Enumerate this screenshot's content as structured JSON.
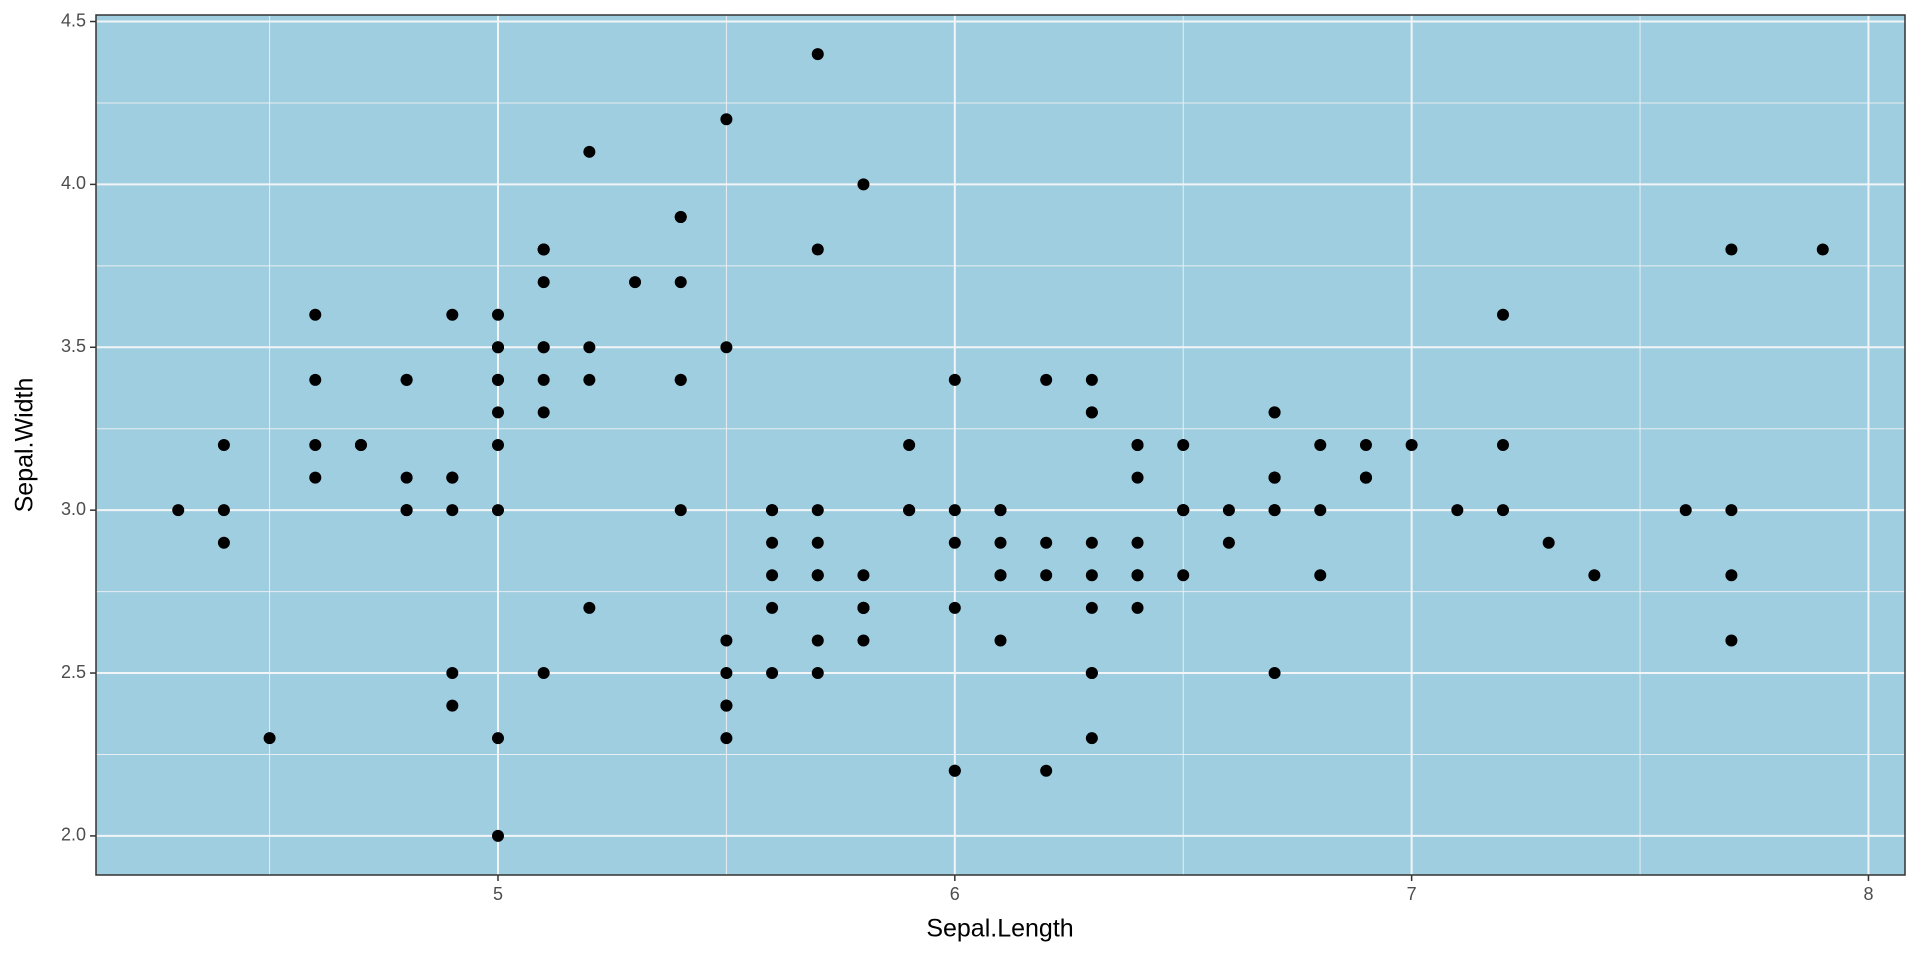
{
  "chart_data": {
    "type": "scatter",
    "x_label": "Sepal.Length",
    "y_label": "Sepal.Width",
    "x": [
      5.1,
      4.9,
      4.7,
      4.6,
      5.0,
      5.4,
      4.6,
      5.0,
      4.4,
      4.9,
      5.4,
      4.8,
      4.8,
      4.3,
      5.8,
      5.7,
      5.4,
      5.1,
      5.7,
      5.1,
      5.4,
      5.1,
      4.6,
      5.1,
      4.8,
      5.0,
      5.0,
      5.2,
      5.2,
      4.7,
      4.8,
      5.4,
      5.2,
      5.5,
      4.9,
      5.0,
      5.5,
      4.9,
      4.4,
      5.1,
      5.0,
      4.5,
      4.4,
      5.0,
      5.1,
      4.8,
      5.1,
      4.6,
      5.3,
      5.0,
      7.0,
      6.4,
      6.9,
      5.5,
      6.5,
      5.7,
      6.3,
      4.9,
      6.6,
      5.2,
      5.0,
      5.9,
      6.0,
      6.1,
      5.6,
      6.7,
      5.6,
      5.8,
      6.2,
      5.6,
      5.9,
      6.1,
      6.3,
      6.1,
      6.4,
      6.6,
      6.8,
      6.7,
      6.0,
      5.7,
      5.5,
      5.5,
      5.8,
      6.0,
      5.4,
      6.0,
      6.7,
      6.3,
      5.6,
      5.5,
      5.5,
      6.1,
      5.8,
      5.0,
      5.6,
      5.7,
      5.7,
      6.2,
      5.1,
      5.7,
      6.3,
      5.8,
      7.1,
      6.3,
      6.5,
      7.6,
      4.9,
      7.3,
      6.7,
      7.2,
      6.5,
      6.4,
      6.8,
      5.7,
      5.8,
      6.4,
      6.5,
      7.7,
      7.7,
      6.0,
      6.9,
      5.6,
      7.7,
      6.3,
      6.7,
      7.2,
      6.2,
      6.1,
      6.4,
      7.2,
      7.4,
      7.9,
      6.4,
      6.3,
      6.1,
      7.7,
      6.3,
      6.4,
      6.0,
      6.9,
      6.7,
      6.9,
      5.8,
      6.8,
      6.7,
      6.7,
      6.3,
      6.5,
      6.2,
      5.9
    ],
    "values": [
      3.5,
      3.0,
      3.2,
      3.1,
      3.6,
      3.9,
      3.4,
      3.4,
      2.9,
      3.1,
      3.7,
      3.4,
      3.0,
      3.0,
      4.0,
      4.4,
      3.9,
      3.5,
      3.8,
      3.8,
      3.4,
      3.7,
      3.6,
      3.3,
      3.4,
      3.0,
      3.4,
      3.5,
      3.4,
      3.2,
      3.1,
      3.4,
      4.1,
      4.2,
      3.1,
      3.2,
      3.5,
      3.6,
      3.0,
      3.4,
      3.5,
      2.3,
      3.2,
      3.5,
      3.8,
      3.0,
      3.8,
      3.2,
      3.7,
      3.3,
      3.2,
      3.2,
      3.1,
      2.3,
      2.8,
      2.8,
      3.3,
      2.4,
      2.9,
      2.7,
      2.0,
      3.0,
      2.2,
      2.9,
      2.9,
      3.1,
      3.0,
      2.7,
      2.2,
      2.5,
      3.2,
      2.8,
      2.5,
      2.8,
      2.9,
      3.0,
      2.8,
      3.0,
      2.9,
      2.6,
      2.4,
      2.4,
      2.7,
      2.7,
      3.0,
      3.4,
      3.1,
      2.3,
      3.0,
      2.5,
      2.6,
      3.0,
      2.6,
      2.3,
      2.7,
      3.0,
      2.9,
      2.9,
      2.5,
      2.8,
      3.3,
      2.7,
      3.0,
      2.9,
      3.0,
      3.0,
      2.5,
      2.9,
      2.5,
      3.6,
      3.2,
      2.7,
      3.0,
      2.5,
      2.8,
      3.2,
      3.0,
      3.8,
      2.6,
      2.2,
      3.2,
      2.8,
      2.8,
      2.7,
      3.3,
      3.2,
      2.8,
      3.0,
      2.8,
      3.0,
      2.8,
      3.8,
      2.8,
      2.8,
      2.6,
      3.0,
      3.4,
      3.1,
      3.0,
      3.1,
      3.1,
      3.1,
      2.7,
      3.2,
      3.3,
      3.0,
      2.5,
      3.0,
      3.4,
      3.0
    ],
    "color": "#000000",
    "background": "#9fcee0",
    "grid": true,
    "xlim": [
      4.12,
      8.08
    ],
    "xticks": [
      5,
      6,
      7,
      8
    ],
    "ylim": [
      1.88,
      4.52
    ],
    "yticks": [
      {
        "value": 2.0,
        "label": "2.0"
      },
      2.5,
      {
        "value": 3.0,
        "label": "3.0"
      },
      3.5,
      {
        "value": 4.0,
        "label": "4.0"
      },
      4.5
    ]
  }
}
